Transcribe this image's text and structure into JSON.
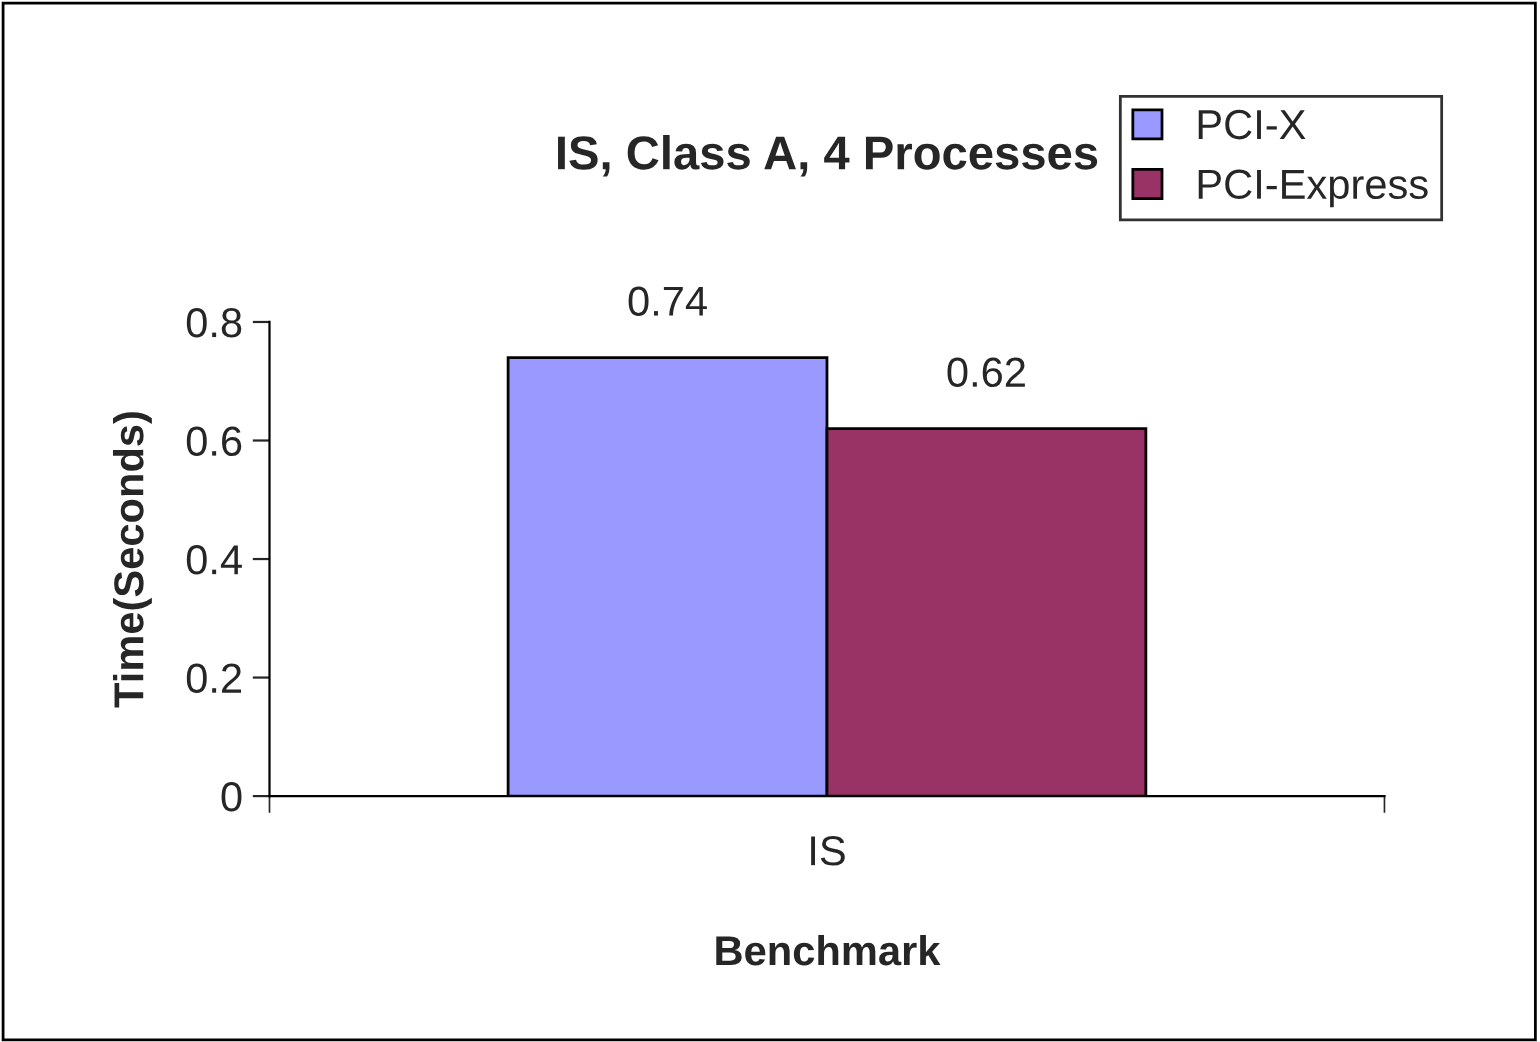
{
  "chart_data": {
    "type": "bar",
    "title": "IS, Class A, 4 Processes",
    "xlabel": "Benchmark",
    "ylabel": "Time(Seconds)",
    "categories": [
      "IS"
    ],
    "series": [
      {
        "name": "PCI-X",
        "color": "#9999ff",
        "values": [
          0.74
        ]
      },
      {
        "name": "PCI-Express",
        "color": "#993366",
        "values": [
          0.62
        ]
      }
    ],
    "ylim": [
      0,
      0.8
    ],
    "yticks": [
      0,
      0.2,
      0.4,
      0.6,
      0.8
    ],
    "data_labels": true,
    "grid": false,
    "legend": "top right"
  }
}
